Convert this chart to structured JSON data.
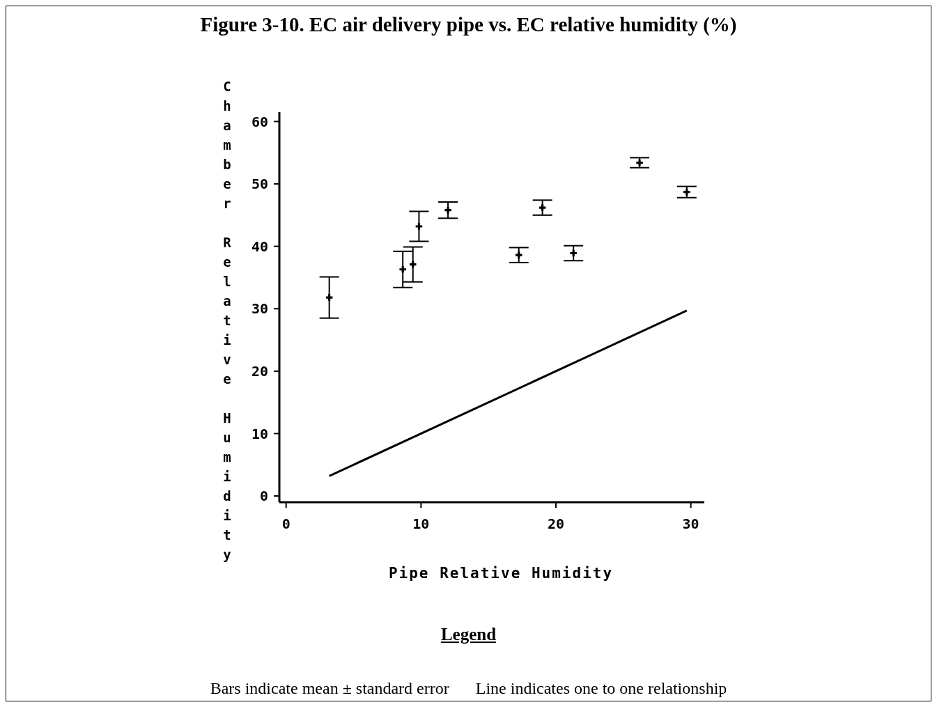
{
  "chart_data": {
    "type": "scatter",
    "title": "Figure 3-10.  EC air delivery pipe vs. EC relative humidity (%)",
    "xlabel": "Pipe Relative Humidity",
    "ylabel": "Chamber Relative Humidity",
    "xlim": [
      -0.5,
      31
    ],
    "xticks": [
      0,
      10,
      20,
      30
    ],
    "ylim": [
      -1,
      61.5
    ],
    "yticks": [
      0,
      10,
      20,
      30,
      40,
      50,
      60
    ],
    "series": [
      {
        "color": "#000000",
        "marker": "cross",
        "x": [
          3.2,
          8.65,
          9.4,
          9.85,
          12.0,
          17.25,
          19.0,
          21.3,
          26.2,
          29.7
        ],
        "values": [
          31.8,
          36.3,
          37.1,
          43.2,
          45.8,
          38.6,
          46.2,
          38.9,
          53.4,
          48.7
        ],
        "errors": [
          3.3,
          2.9,
          2.8,
          2.4,
          1.3,
          1.2,
          1.2,
          1.2,
          0.8,
          0.9
        ]
      },
      {
        "type": "line",
        "color": "#000000",
        "x": [
          3.2,
          29.7
        ],
        "values": [
          3.2,
          29.7
        ]
      }
    ],
    "annotations": [
      "Legend",
      "Bars indicate mean ± standard error",
      "Line indicates one to one relationship"
    ]
  }
}
